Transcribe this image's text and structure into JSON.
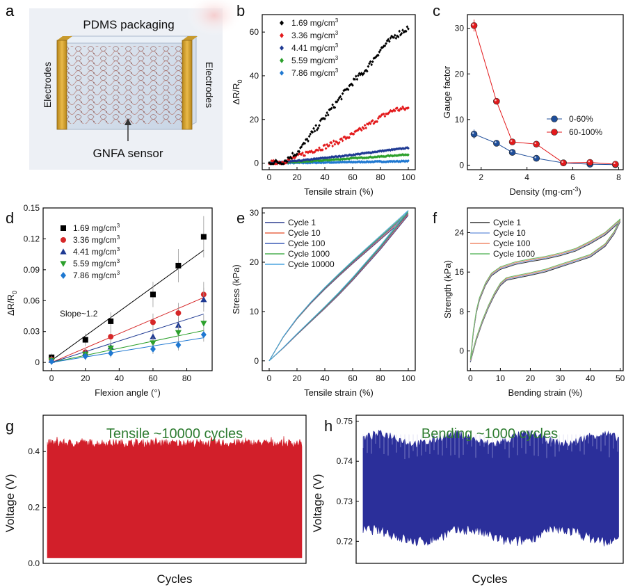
{
  "panels": {
    "a": {
      "letter": "a",
      "title": "PDMS packaging",
      "left_label": "Electrodes",
      "right_label": "Electrodes",
      "sensor_label": "GNFA sensor"
    }
  },
  "chart_data": [
    {
      "id": "b",
      "letter": "b",
      "type": "scatter",
      "xlabel": "Tensile strain (%)",
      "ylabel": "ΔR/R",
      "ylabel_sub": "0",
      "xlim": [
        -5,
        105
      ],
      "ylim": [
        -3,
        68
      ],
      "xticks": [
        0,
        20,
        40,
        60,
        80,
        100
      ],
      "yticks": [
        0,
        20,
        40,
        60
      ],
      "legend": "top-left",
      "series": [
        {
          "name": "1.69 mg/cm",
          "sup": "3",
          "color": "#000000",
          "marker": "diamond",
          "points": [
            [
              0,
              0
            ],
            [
              10,
              0.6
            ],
            [
              20,
              5
            ],
            [
              25,
              8.5
            ],
            [
              30,
              13
            ],
            [
              40,
              21
            ],
            [
              50,
              29
            ],
            [
              60,
              37
            ],
            [
              70,
              43
            ],
            [
              80,
              52
            ],
            [
              90,
              58
            ],
            [
              100,
              62
            ]
          ]
        },
        {
          "name": "3.36 mg/cm",
          "sup": "3",
          "color": "#e31a1c",
          "marker": "diamond",
          "points": [
            [
              0,
              0
            ],
            [
              10,
              0.6
            ],
            [
              20,
              3
            ],
            [
              30,
              5.5
            ],
            [
              40,
              7.5
            ],
            [
              50,
              10
            ],
            [
              60,
              13
            ],
            [
              70,
              17
            ],
            [
              80,
              21
            ],
            [
              90,
              24.5
            ],
            [
              100,
              25
            ]
          ]
        },
        {
          "name": "4.41 mg/cm",
          "sup": "3",
          "color": "#1f3a93",
          "marker": "diamond",
          "points": [
            [
              0,
              0
            ],
            [
              20,
              1
            ],
            [
              40,
              2.4
            ],
            [
              60,
              3.8
            ],
            [
              80,
              5.5
            ],
            [
              100,
              7
            ]
          ]
        },
        {
          "name": "5.59 mg/cm",
          "sup": "3",
          "color": "#2ca02c",
          "marker": "diamond",
          "points": [
            [
              0,
              0
            ],
            [
              20,
              0.5
            ],
            [
              40,
              1.3
            ],
            [
              60,
              2.2
            ],
            [
              80,
              3
            ],
            [
              100,
              4
            ]
          ]
        },
        {
          "name": "7.86 mg/cm",
          "sup": "3",
          "color": "#1f78d1",
          "marker": "diamond",
          "points": [
            [
              0,
              0
            ],
            [
              20,
              0.1
            ],
            [
              40,
              0.3
            ],
            [
              60,
              0.5
            ],
            [
              80,
              0.7
            ],
            [
              100,
              0.9
            ]
          ]
        }
      ]
    },
    {
      "id": "c",
      "letter": "c",
      "type": "line",
      "xlabel": "Density (mg·cm",
      "xlabel_sup": "-3",
      "xlabel_end": ")",
      "ylabel": "Gauge factor",
      "xlim": [
        1.4,
        8.2
      ],
      "ylim": [
        -1,
        33
      ],
      "xticks": [
        2,
        4,
        6,
        8
      ],
      "yticks": [
        0,
        10,
        20,
        30
      ],
      "legend": "center-right",
      "series": [
        {
          "name": "0-60%",
          "color": "#1f4e9a",
          "points": [
            [
              1.69,
              6.8
            ],
            [
              2.67,
              4.8
            ],
            [
              3.36,
              2.8
            ],
            [
              4.41,
              1.5
            ],
            [
              5.59,
              0.5
            ],
            [
              6.75,
              0.2
            ],
            [
              7.86,
              0.1
            ]
          ]
        },
        {
          "name": "60-100%",
          "color": "#e31a1c",
          "points": [
            [
              1.69,
              30.6
            ],
            [
              2.67,
              14
            ],
            [
              3.36,
              5.1
            ],
            [
              4.41,
              4.6
            ],
            [
              5.59,
              0.5
            ],
            [
              6.75,
              0.6
            ],
            [
              7.86,
              0.2
            ]
          ]
        }
      ]
    },
    {
      "id": "d",
      "letter": "d",
      "type": "scatter",
      "xlabel": "Flexion angle (°)",
      "ylabel": "ΔR/R",
      "ylabel_sub": "0",
      "xlim": [
        -5,
        95
      ],
      "ylim": [
        -0.008,
        0.15
      ],
      "xticks": [
        0,
        20,
        40,
        60,
        80
      ],
      "yticks": [
        0,
        0.03,
        0.06,
        0.09,
        0.12,
        0.15
      ],
      "ytick_labels": [
        "0",
        "0.03",
        "0.06",
        "0.09",
        "0.12",
        "0.15"
      ],
      "annotation": "Slope~1.2",
      "legend": "top-left",
      "series": [
        {
          "name": "1.69 mg/cm",
          "sup": "3",
          "color": "#000000",
          "marker": "square",
          "points": [
            [
              0,
              0.005
            ],
            [
              20,
              0.022
            ],
            [
              35,
              0.04
            ],
            [
              60,
              0.066
            ],
            [
              75,
              0.094
            ],
            [
              90,
              0.122
            ]
          ],
          "fit": [
            [
              0,
              0.002
            ],
            [
              90,
              0.109
            ]
          ]
        },
        {
          "name": "3.36 mg/cm",
          "sup": "3",
          "color": "#d62728",
          "marker": "circle",
          "points": [
            [
              0,
              0.003
            ],
            [
              20,
              0.01
            ],
            [
              35,
              0.025
            ],
            [
              60,
              0.039
            ],
            [
              75,
              0.048
            ],
            [
              90,
              0.066
            ]
          ],
          "fit": [
            [
              0,
              0.0
            ],
            [
              90,
              0.063
            ]
          ]
        },
        {
          "name": "4.41 mg/cm",
          "sup": "3",
          "color": "#1f3a93",
          "marker": "triangle",
          "points": [
            [
              0,
              0.002
            ],
            [
              20,
              0.009
            ],
            [
              35,
              0.015
            ],
            [
              60,
              0.025
            ],
            [
              75,
              0.036
            ],
            [
              90,
              0.061
            ]
          ],
          "fit": [
            [
              0,
              0.0
            ],
            [
              90,
              0.047
            ]
          ]
        },
        {
          "name": "5.59 mg/cm",
          "sup": "3",
          "color": "#2ca02c",
          "marker": "triangle-down",
          "points": [
            [
              0,
              0.002
            ],
            [
              20,
              0.008
            ],
            [
              35,
              0.014
            ],
            [
              60,
              0.019
            ],
            [
              75,
              0.029
            ],
            [
              90,
              0.038
            ]
          ],
          "fit": [
            [
              0,
              0.0
            ],
            [
              90,
              0.031
            ]
          ]
        },
        {
          "name": "7.86 mg/cm",
          "sup": "3",
          "color": "#1f78d1",
          "marker": "diamond",
          "points": [
            [
              0,
              0.001
            ],
            [
              20,
              0.006
            ],
            [
              35,
              0.009
            ],
            [
              60,
              0.013
            ],
            [
              75,
              0.017
            ],
            [
              90,
              0.027
            ]
          ],
          "fit": [
            [
              0,
              0.0
            ],
            [
              90,
              0.024
            ]
          ]
        }
      ]
    },
    {
      "id": "e",
      "letter": "e",
      "type": "line",
      "xlabel": "Tensile strain (%)",
      "ylabel": "Stress (kPa)",
      "xlim": [
        -5,
        105
      ],
      "ylim": [
        -2,
        31
      ],
      "xticks": [
        0,
        20,
        40,
        60,
        80,
        100
      ],
      "yticks": [
        0,
        10,
        20,
        30
      ],
      "legend": "top-left",
      "series": [
        {
          "name": "Cycle 1",
          "color": "#2f3f8f"
        },
        {
          "name": "Cycle 10",
          "color": "#e8694a"
        },
        {
          "name": "Cycle 100",
          "color": "#3b5bb5"
        },
        {
          "name": "Cycle 1000",
          "color": "#4caf50"
        },
        {
          "name": "Cycle 10000",
          "color": "#4aa3df"
        }
      ],
      "loading_curve": [
        [
          0,
          0
        ],
        [
          10,
          4.8
        ],
        [
          20,
          8.6
        ],
        [
          30,
          11.8
        ],
        [
          40,
          14.7
        ],
        [
          50,
          17.4
        ],
        [
          60,
          20
        ],
        [
          70,
          22.5
        ],
        [
          80,
          25
        ],
        [
          90,
          27.5
        ],
        [
          100,
          30
        ]
      ],
      "unloading_curve": [
        [
          100,
          30
        ],
        [
          90,
          26.5
        ],
        [
          80,
          23
        ],
        [
          70,
          19.8
        ],
        [
          60,
          16.6
        ],
        [
          50,
          13.6
        ],
        [
          40,
          10.8
        ],
        [
          30,
          8.1
        ],
        [
          20,
          5.4
        ],
        [
          10,
          2.6
        ],
        [
          0,
          0
        ]
      ]
    },
    {
      "id": "f",
      "letter": "f",
      "type": "line",
      "xlabel": "Bending strain (%)",
      "ylabel": "Strength (kPa)",
      "xlim": [
        -1,
        51
      ],
      "ylim": [
        -4,
        29
      ],
      "xticks": [
        0,
        10,
        20,
        30,
        40,
        50
      ],
      "yticks": [
        0,
        8,
        16,
        24
      ],
      "legend": "top-left",
      "series": [
        {
          "name": "Cycle 1",
          "color": "#333333"
        },
        {
          "name": "Cycle 10",
          "color": "#7fa0e0"
        },
        {
          "name": "Cycle 100",
          "color": "#f08a6a"
        },
        {
          "name": "Cycle 1000",
          "color": "#66bb6a"
        }
      ],
      "loading_curve": [
        [
          0,
          -2
        ],
        [
          1,
          4
        ],
        [
          2,
          8
        ],
        [
          3,
          10.5
        ],
        [
          5,
          13.5
        ],
        [
          7,
          15.5
        ],
        [
          10,
          16.8
        ],
        [
          15,
          17.8
        ],
        [
          20,
          18.4
        ],
        [
          25,
          18.9
        ],
        [
          30,
          19.6
        ],
        [
          35,
          20.5
        ],
        [
          40,
          22
        ],
        [
          45,
          23.8
        ],
        [
          50,
          26.5
        ]
      ],
      "unloading_curve": [
        [
          50,
          26.5
        ],
        [
          48,
          24
        ],
        [
          45,
          21.5
        ],
        [
          40,
          19.3
        ],
        [
          35,
          18.3
        ],
        [
          30,
          17.3
        ],
        [
          25,
          16.3
        ],
        [
          20,
          15.6
        ],
        [
          15,
          15
        ],
        [
          12,
          14.6
        ],
        [
          10,
          13.5
        ],
        [
          8,
          11.5
        ],
        [
          6,
          9
        ],
        [
          4,
          6
        ],
        [
          2,
          2.5
        ],
        [
          0,
          -2
        ]
      ]
    },
    {
      "id": "g",
      "letter": "g",
      "type": "area",
      "title": "Tensile ~10000 cycles",
      "xlabel": "Cycles",
      "ylabel": "Voltage (V)",
      "ylim": [
        0,
        0.53
      ],
      "yticks": [
        0,
        0.2,
        0.4
      ],
      "ytick_labels": [
        "0.0",
        "0.2",
        "0.4"
      ],
      "color": "#d21f2a",
      "title_color": "#2f7d32",
      "baseline": 0.02,
      "peak_mean": 0.43,
      "peak_jitter": 0.015
    },
    {
      "id": "h",
      "letter": "h",
      "type": "area",
      "title": "Bending ~1000 cycles",
      "xlabel": "Cycles",
      "ylabel": "Voltage (V)",
      "ylim": [
        0.7145,
        0.7515
      ],
      "yticks": [
        0.72,
        0.73,
        0.74,
        0.75
      ],
      "ytick_labels": [
        "0.72",
        "0.73",
        "0.74",
        "0.75"
      ],
      "color": "#2b2f9a",
      "title_color": "#2f7d32",
      "top_mean": 0.7455,
      "bottom_mean": 0.7215
    }
  ]
}
